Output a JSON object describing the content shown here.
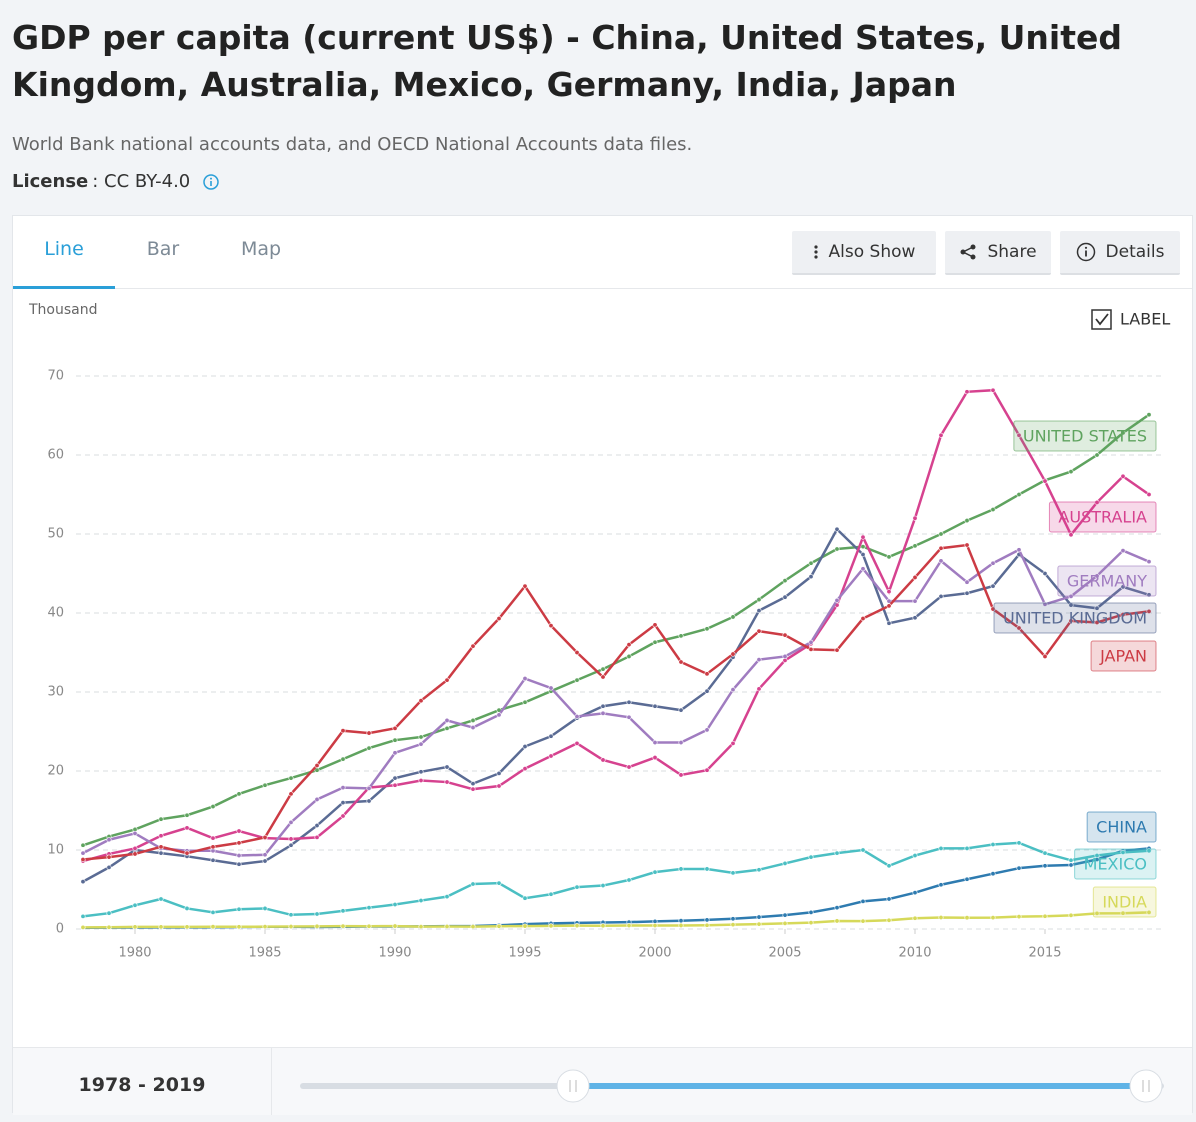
{
  "header": {
    "title": "GDP per capita (current US$) - China, United States, United Kingdom, Australia, Mexico, Germany, India, Japan",
    "source": "World Bank national accounts data, and OECD National Accounts data files.",
    "license_label": "License",
    "license_value": ": CC BY-4.0"
  },
  "tabs": [
    "Line",
    "Bar",
    "Map"
  ],
  "buttons": [
    "Also Show",
    "Share",
    "Details"
  ],
  "label_toggle": "LABEL",
  "range": "1978 - 2019",
  "chart_data": {
    "type": "line",
    "y_label": "Thousand",
    "x": [
      1978,
      1979,
      1980,
      1981,
      1982,
      1983,
      1984,
      1985,
      1986,
      1987,
      1988,
      1989,
      1990,
      1991,
      1992,
      1993,
      1994,
      1995,
      1996,
      1997,
      1998,
      1999,
      2000,
      2001,
      2002,
      2003,
      2004,
      2005,
      2006,
      2007,
      2008,
      2009,
      2010,
      2011,
      2012,
      2013,
      2014,
      2015,
      2016,
      2017,
      2018,
      2019
    ],
    "xlim": [
      1978,
      2019
    ],
    "xticks": [
      1980,
      1985,
      1990,
      1995,
      2000,
      2005,
      2010,
      2015
    ],
    "ylim": [
      0,
      70
    ],
    "yticks": [
      0,
      10,
      20,
      30,
      40,
      50,
      60,
      70
    ],
    "grid": true,
    "series": [
      {
        "name": "CHINA",
        "color": "#2e7bb0",
        "values": [
          0.16,
          0.18,
          0.19,
          0.2,
          0.2,
          0.22,
          0.25,
          0.29,
          0.28,
          0.25,
          0.28,
          0.31,
          0.32,
          0.33,
          0.37,
          0.38,
          0.47,
          0.61,
          0.71,
          0.78,
          0.83,
          0.87,
          0.96,
          1.05,
          1.15,
          1.29,
          1.51,
          1.75,
          2.1,
          2.7,
          3.5,
          3.8,
          4.6,
          5.6,
          6.3,
          7.0,
          7.7,
          8.0,
          8.1,
          8.8,
          9.9,
          10.2
        ]
      },
      {
        "name": "UNITED STATES",
        "color": "#5fa35f",
        "values": [
          10.6,
          11.7,
          12.6,
          13.9,
          14.4,
          15.5,
          17.1,
          18.2,
          19.1,
          20.1,
          21.5,
          22.9,
          23.9,
          24.3,
          25.4,
          26.4,
          27.7,
          28.7,
          30.1,
          31.5,
          32.9,
          34.5,
          36.3,
          37.1,
          38.0,
          39.5,
          41.7,
          44.1,
          46.3,
          48.1,
          48.4,
          47.1,
          48.5,
          50.0,
          51.7,
          53.1,
          55.0,
          56.8,
          57.9,
          60.0,
          62.8,
          65.1
        ]
      },
      {
        "name": "UNITED KINGDOM",
        "color": "#5a6b94",
        "values": [
          6.0,
          7.8,
          10.0,
          9.6,
          9.2,
          8.7,
          8.2,
          8.6,
          10.6,
          13.1,
          16.0,
          16.2,
          19.1,
          19.9,
          20.5,
          18.4,
          19.7,
          23.1,
          24.4,
          26.7,
          28.2,
          28.7,
          28.2,
          27.7,
          30.1,
          34.4,
          40.3,
          42.0,
          44.6,
          50.6,
          47.4,
          38.7,
          39.4,
          42.1,
          42.5,
          43.4,
          47.4,
          45.0,
          41.0,
          40.6,
          43.3,
          42.3
        ]
      },
      {
        "name": "AUSTRALIA",
        "color": "#d6428f",
        "values": [
          8.6,
          9.5,
          10.2,
          11.8,
          12.8,
          11.5,
          12.4,
          11.5,
          11.4,
          11.6,
          14.3,
          17.9,
          18.2,
          18.8,
          18.6,
          17.7,
          18.1,
          20.3,
          21.9,
          23.5,
          21.4,
          20.5,
          21.7,
          19.5,
          20.1,
          23.5,
          30.4,
          34.0,
          36.1,
          41.0,
          49.6,
          42.7,
          52.0,
          62.5,
          68.0,
          68.2,
          62.5,
          56.7,
          49.9,
          54.0,
          57.3,
          55.0
        ]
      },
      {
        "name": "MEXICO",
        "color": "#4bbfc3",
        "values": [
          1.6,
          2.0,
          3.0,
          3.8,
          2.6,
          2.1,
          2.5,
          2.6,
          1.8,
          1.9,
          2.3,
          2.7,
          3.1,
          3.6,
          4.1,
          5.7,
          5.8,
          3.9,
          4.4,
          5.3,
          5.5,
          6.2,
          7.2,
          7.6,
          7.6,
          7.1,
          7.5,
          8.3,
          9.1,
          9.6,
          10.0,
          8.0,
          9.3,
          10.2,
          10.2,
          10.7,
          10.9,
          9.6,
          8.7,
          9.3,
          9.7,
          9.9
        ]
      },
      {
        "name": "GERMANY",
        "color": "#a07cc0",
        "values": [
          9.6,
          11.3,
          12.1,
          10.2,
          9.9,
          9.9,
          9.3,
          9.4,
          13.5,
          16.4,
          17.9,
          17.8,
          22.3,
          23.4,
          26.4,
          25.5,
          27.1,
          31.7,
          30.5,
          26.9,
          27.3,
          26.8,
          23.6,
          23.6,
          25.2,
          30.3,
          34.1,
          34.5,
          36.3,
          41.6,
          45.6,
          41.5,
          41.5,
          46.6,
          43.9,
          46.3,
          48.0,
          41.1,
          42.1,
          44.7,
          47.9,
          46.5
        ]
      },
      {
        "name": "INDIA",
        "color": "#d6d95a",
        "values": [
          0.21,
          0.22,
          0.27,
          0.27,
          0.27,
          0.29,
          0.28,
          0.3,
          0.31,
          0.34,
          0.36,
          0.35,
          0.37,
          0.3,
          0.32,
          0.3,
          0.35,
          0.37,
          0.4,
          0.42,
          0.41,
          0.44,
          0.44,
          0.45,
          0.47,
          0.55,
          0.62,
          0.71,
          0.8,
          1.02,
          1.0,
          1.1,
          1.36,
          1.46,
          1.43,
          1.44,
          1.57,
          1.61,
          1.73,
          1.98,
          2.0,
          2.1
        ]
      },
      {
        "name": "JAPAN",
        "color": "#cc3b44",
        "values": [
          8.8,
          9.1,
          9.5,
          10.4,
          9.6,
          10.4,
          10.9,
          11.6,
          17.1,
          20.7,
          25.1,
          24.8,
          25.4,
          28.9,
          31.5,
          35.8,
          39.3,
          43.4,
          38.4,
          35.0,
          31.9,
          36.0,
          38.5,
          33.8,
          32.3,
          34.8,
          37.7,
          37.2,
          35.4,
          35.3,
          39.3,
          40.9,
          44.5,
          48.2,
          48.6,
          40.5,
          38.1,
          34.5,
          39.0,
          38.8,
          39.8,
          40.2
        ]
      }
    ]
  }
}
